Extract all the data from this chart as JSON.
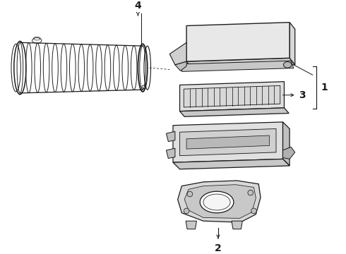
{
  "background_color": "#ffffff",
  "line_color": "#1a1a1a",
  "label_4": "4",
  "label_3": "3",
  "label_2": "2",
  "label_1": "1",
  "figsize": [
    4.9,
    3.6
  ],
  "dpi": 100
}
